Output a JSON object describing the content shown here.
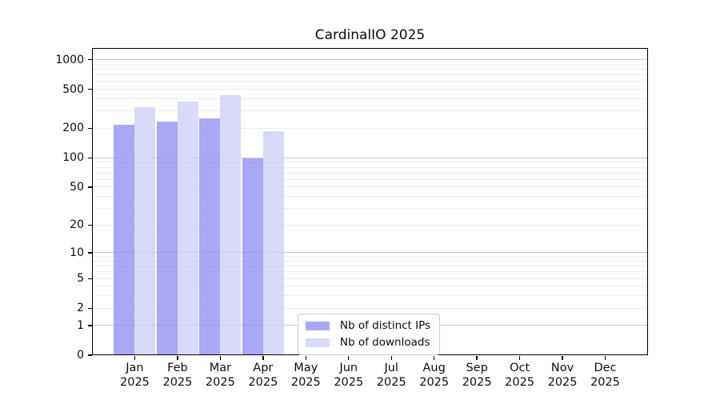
{
  "chart_data": {
    "type": "bar",
    "title": "CardinalIO 2025",
    "year": "2025",
    "months": [
      "Jan",
      "Feb",
      "Mar",
      "Apr",
      "May",
      "Jun",
      "Jul",
      "Aug",
      "Sep",
      "Oct",
      "Nov",
      "Dec"
    ],
    "series": [
      {
        "name": "Nb of distinct IPs",
        "color": "#9292f4",
        "alpha": 0.8,
        "values": [
          217,
          236,
          255,
          98,
          null,
          null,
          null,
          null,
          null,
          null,
          null,
          null
        ]
      },
      {
        "name": "Nb of downloads",
        "color": "#d0d0f8",
        "alpha": 0.8,
        "values": [
          330,
          376,
          436,
          186,
          null,
          null,
          null,
          null,
          null,
          null,
          null,
          null
        ]
      }
    ],
    "yscale": "log1p",
    "ylim": [
      0,
      1316
    ],
    "yticks": [
      0,
      1,
      2,
      5,
      10,
      20,
      50,
      100,
      200,
      500,
      1000
    ],
    "xlabel": "",
    "ylabel": "",
    "grid": {
      "orientation": "horizontal",
      "major_at": [
        1,
        10,
        100,
        1000
      ],
      "minor_subs": [
        2,
        3,
        4,
        5,
        6,
        7,
        8,
        9
      ],
      "major_color": "#c9c9c9",
      "minor_color": "#ececec"
    },
    "legend": {
      "position": "lower center",
      "items": [
        "Nb of distinct IPs",
        "Nb of downloads"
      ]
    }
  }
}
